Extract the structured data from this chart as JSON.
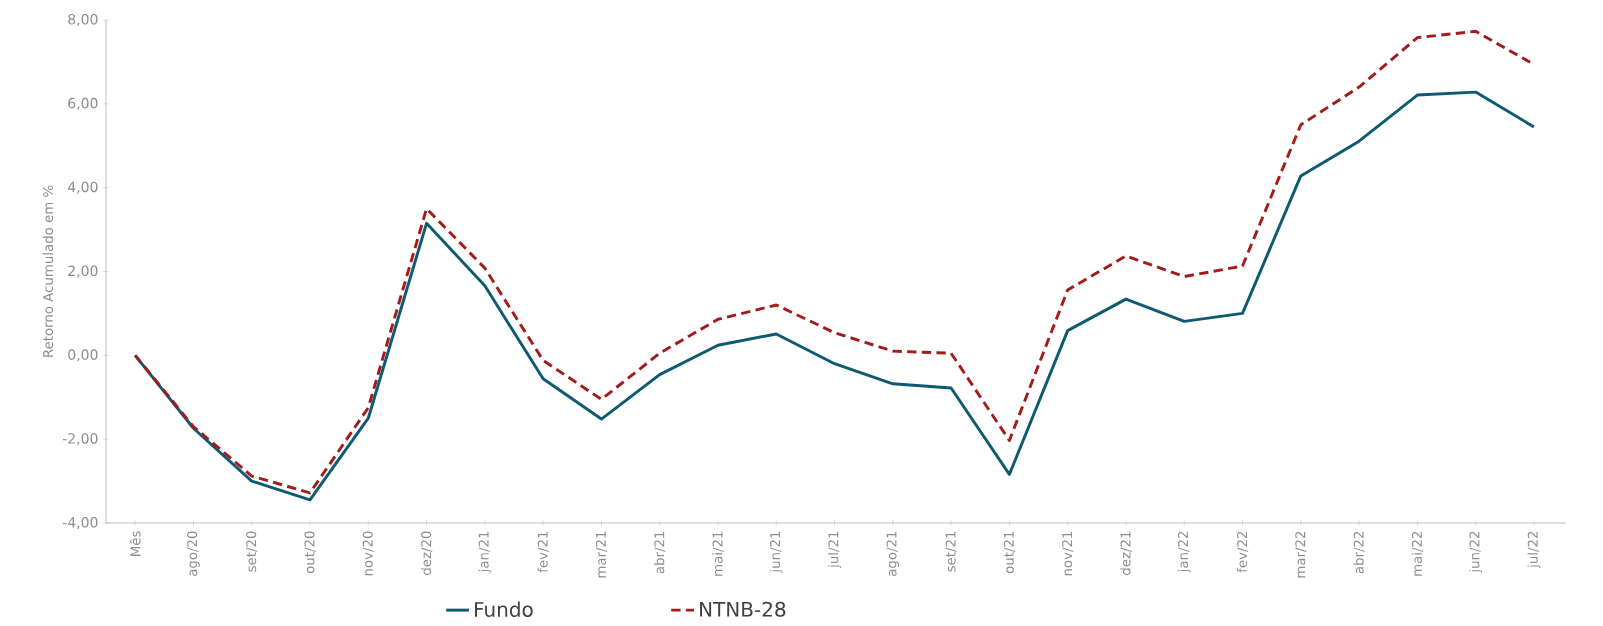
{
  "chart_data": {
    "type": "line",
    "ylabel": "Retorno Acumulado em %",
    "categories": [
      "Mês",
      "ago/20",
      "set/20",
      "out/20",
      "nov/20",
      "dez/20",
      "jan/21",
      "fev/21",
      "mar/21",
      "abr/21",
      "mai/21",
      "jun/21",
      "jul/21",
      "ago/21",
      "set/21",
      "out/21",
      "nov/21",
      "dez/21",
      "jan/22",
      "fev/22",
      "mar/22",
      "abr/22",
      "mai/22",
      "jun/22",
      "jul/22"
    ],
    "series": [
      {
        "name": "Fundo",
        "color": "#0e5a73",
        "line_style": "solid",
        "values": [
          0,
          -1.74,
          -3.0,
          -3.45,
          -1.5,
          3.15,
          1.66,
          -0.56,
          -1.52,
          -0.46,
          0.24,
          0.51,
          -0.2,
          -0.68,
          -0.78,
          -2.84,
          0.59,
          1.34,
          0.81,
          1.0,
          4.28,
          5.11,
          6.21,
          6.28,
          5.45
        ]
      },
      {
        "name": "NTNB-28",
        "color": "#a31c1c",
        "line_style": "dashed",
        "values": [
          0,
          -1.7,
          -2.88,
          -3.28,
          -1.25,
          3.5,
          2.08,
          -0.12,
          -1.05,
          0.05,
          0.86,
          1.2,
          0.54,
          0.1,
          0.05,
          -2.03,
          1.56,
          2.37,
          1.88,
          2.13,
          5.5,
          6.4,
          7.58,
          7.73,
          6.94
        ]
      }
    ],
    "ylim": [
      -4,
      8
    ],
    "yticks": [
      {
        "value": -4,
        "label": "-4,00"
      },
      {
        "value": -2,
        "label": "-2,00"
      },
      {
        "value": 0,
        "label": "0,00"
      },
      {
        "value": 2,
        "label": "2,00"
      },
      {
        "value": 4,
        "label": "4,00"
      },
      {
        "value": 6,
        "label": "6,00"
      },
      {
        "value": 8,
        "label": "8,00"
      }
    ],
    "grid": false,
    "legend": "bottom",
    "marker": "none"
  }
}
